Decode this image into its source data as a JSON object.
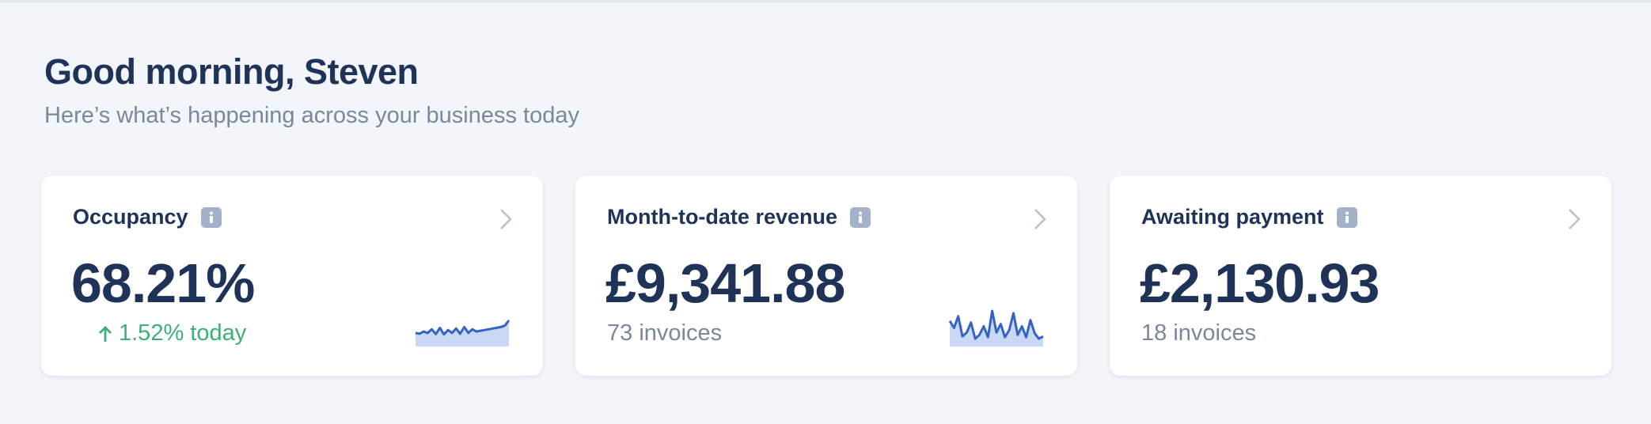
{
  "header": {
    "title": "Good morning, Steven",
    "subtitle": "Here’s what’s happening across your business today"
  },
  "cards": [
    {
      "label": "Occupancy",
      "value": "68.21%",
      "detail": "1.52% today",
      "sparkline": [
        30,
        28,
        34,
        30,
        40,
        27,
        44,
        26,
        38,
        30,
        42,
        28,
        46,
        30,
        40,
        34,
        36,
        38,
        40,
        42,
        44,
        46,
        50,
        64
      ]
    },
    {
      "label": "Month-to-date revenue",
      "value": "£9,341.88",
      "detail": "73 invoices",
      "sparkline": [
        60,
        42,
        72,
        20,
        30,
        56,
        14,
        24,
        46,
        18,
        86,
        30,
        52,
        18,
        36,
        80,
        24,
        46,
        18,
        62,
        28,
        14,
        20
      ]
    },
    {
      "label": "Awaiting payment",
      "value": "£2,130.93",
      "detail": "18 invoices"
    }
  ]
}
